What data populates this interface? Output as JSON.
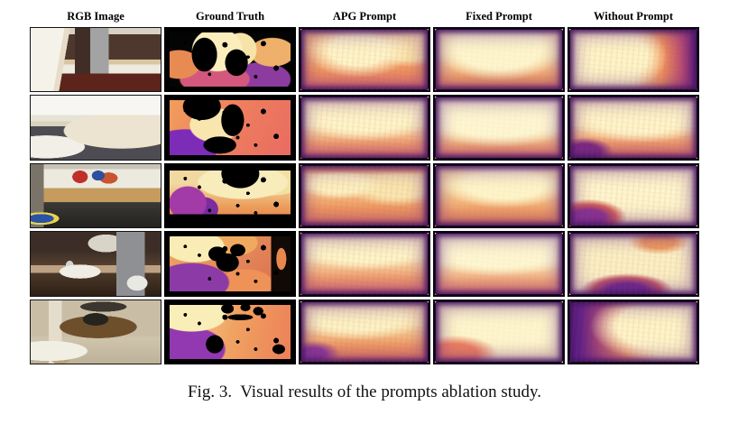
{
  "figure": {
    "column_headers": [
      "RGB Image",
      "Ground Truth",
      "APG Prompt",
      "Fixed Prompt",
      "Without Prompt"
    ],
    "caption": "Fig. 3.  Visual results of the prompts ablation study.",
    "grid": {
      "rows": 5,
      "columns": 5
    },
    "row_scenes": [
      "kitchen",
      "living room sofa",
      "desk by storefront window",
      "bathroom vanity",
      "dining room with desk"
    ],
    "colormap": {
      "name": "magma-style depth colormap",
      "near_color": "#fcf2c4",
      "mid_color": "#ef8e58",
      "far_color": "#46106a",
      "invalid_color": "#000000"
    }
  }
}
